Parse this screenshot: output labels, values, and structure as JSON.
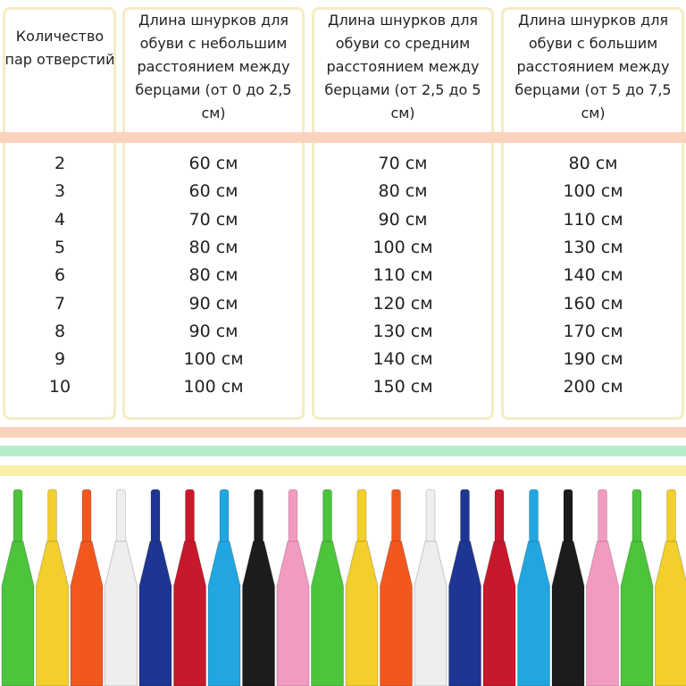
{
  "table": {
    "header": [
      "Количество пар отверстий",
      "Длина шнурков для обуви с небольшим расстоянием между берцами (от 0 до 2,5 см)",
      "Длина шнурков для обуви со средним расстоянием между берцами (от 2,5 до 5 см)",
      "Длина шнурков для обуви с большим расстоянием между берцами (от 5 до 7,5 см)"
    ],
    "rows": [
      [
        "2",
        "60 см",
        "70 см",
        "80 см"
      ],
      [
        "3",
        "60 см",
        "80 см",
        "100 см"
      ],
      [
        "4",
        "70 см",
        "90 см",
        "110 см"
      ],
      [
        "5",
        "80 см",
        "100 см",
        "130 см"
      ],
      [
        "6",
        "80 см",
        "110 см",
        "140 см"
      ],
      [
        "7",
        "90 см",
        "120 см",
        "160 см"
      ],
      [
        "8",
        "90 см",
        "130 см",
        "170 см"
      ],
      [
        "9",
        "100 см",
        "140 см",
        "190 см"
      ],
      [
        "10",
        "100 см",
        "150 см",
        "200 см"
      ]
    ]
  }
}
